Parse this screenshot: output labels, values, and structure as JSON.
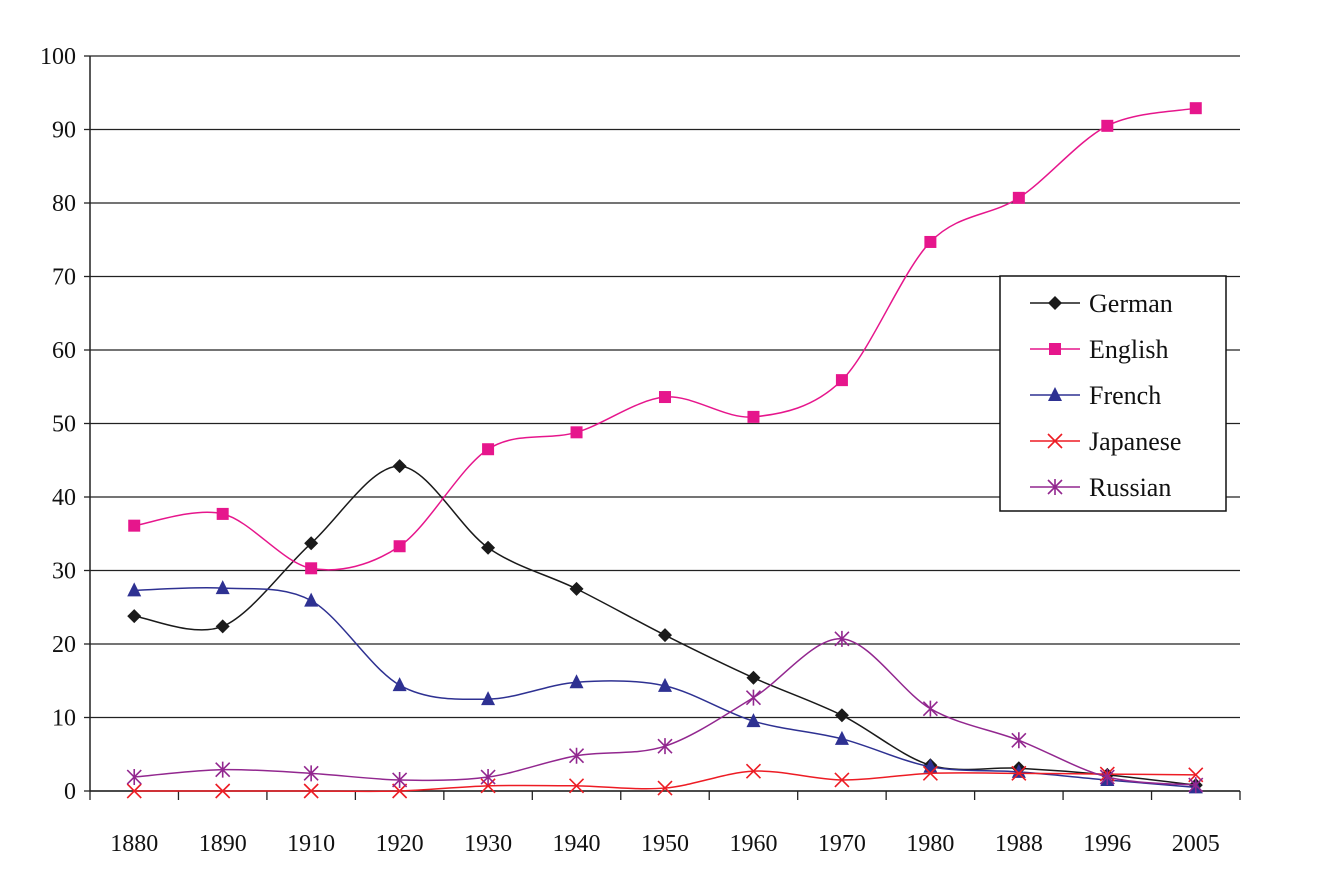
{
  "chart_data": {
    "type": "line",
    "title": "",
    "xlabel": "",
    "ylabel": "",
    "ylim": [
      0,
      100
    ],
    "yticks": [
      "0",
      "10",
      "20",
      "30",
      "40",
      "50",
      "60",
      "70",
      "80",
      "90",
      "100"
    ],
    "categories": [
      "1880",
      "1890",
      "1910",
      "1920",
      "1930",
      "1940",
      "1950",
      "1960",
      "1970",
      "1980",
      "1988",
      "1996",
      "2005"
    ],
    "grid": "horizontal",
    "legend_position": "right",
    "series": [
      {
        "name": "German",
        "color": "#1a1a1a",
        "marker": "diamond",
        "values": [
          23.8,
          22.4,
          33.7,
          44.2,
          33.1,
          27.5,
          21.2,
          15.4,
          10.3,
          3.5,
          3.1,
          2.2,
          0.8
        ]
      },
      {
        "name": "English",
        "color": "#e6168c",
        "marker": "square",
        "values": [
          36.1,
          37.7,
          30.3,
          33.3,
          46.5,
          48.8,
          53.6,
          50.9,
          55.9,
          74.7,
          80.7,
          90.5,
          92.9
        ]
      },
      {
        "name": "French",
        "color": "#2e3192",
        "marker": "triangle",
        "values": [
          27.3,
          27.6,
          25.9,
          14.4,
          12.5,
          14.8,
          14.3,
          9.5,
          7.1,
          3.3,
          2.6,
          1.5,
          0.5
        ]
      },
      {
        "name": "Japanese",
        "color": "#ed1c24",
        "marker": "x",
        "values": [
          0,
          0,
          0,
          0,
          0.7,
          0.7,
          0.4,
          2.7,
          1.5,
          2.4,
          2.4,
          2.3,
          2.2
        ]
      },
      {
        "name": "Russian",
        "color": "#92278f",
        "marker": "star",
        "values": [
          1.9,
          2.9,
          2.4,
          1.5,
          1.9,
          4.8,
          6.1,
          12.7,
          20.7,
          11.2,
          6.9,
          1.9,
          0.8
        ]
      }
    ]
  }
}
